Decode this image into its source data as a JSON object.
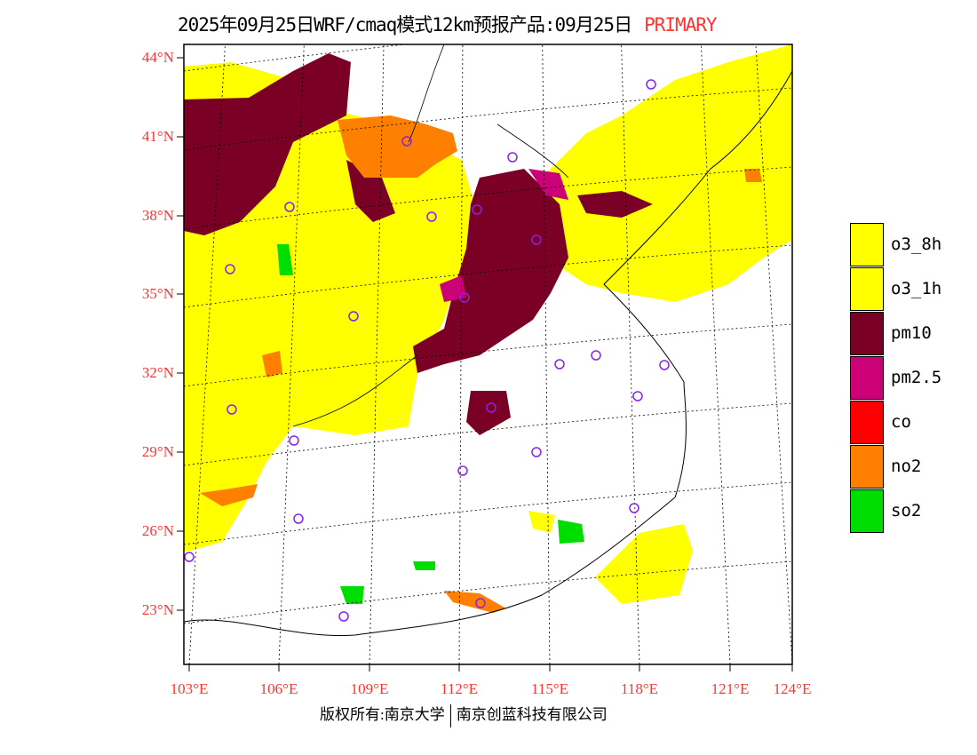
{
  "title": {
    "text": "2025年09月25日WRF/cmaq模式12km预报产品:09月25日",
    "tag": "PRIMARY"
  },
  "lat_labels": [
    "44°N",
    "41°N",
    "38°N",
    "35°N",
    "32°N",
    "29°N",
    "26°N",
    "23°N"
  ],
  "lon_labels": [
    "103°E",
    "106°E",
    "109°E",
    "112°E",
    "115°E",
    "118°E",
    "121°E",
    "124°E"
  ],
  "legend": [
    {
      "label": "o3_8h",
      "color": "#ffff00"
    },
    {
      "label": "o3_1h",
      "color": "#ffff00"
    },
    {
      "label": "pm10",
      "color": "#7a0025"
    },
    {
      "label": "pm2.5",
      "color": "#cc0077"
    },
    {
      "label": "co",
      "color": "#ff0000"
    },
    {
      "label": "no2",
      "color": "#ff8000"
    },
    {
      "label": "so2",
      "color": "#00dd00"
    }
  ],
  "footer": {
    "left": "版权所有:南京大学",
    "right": "南京创蓝科技有限公司"
  }
}
